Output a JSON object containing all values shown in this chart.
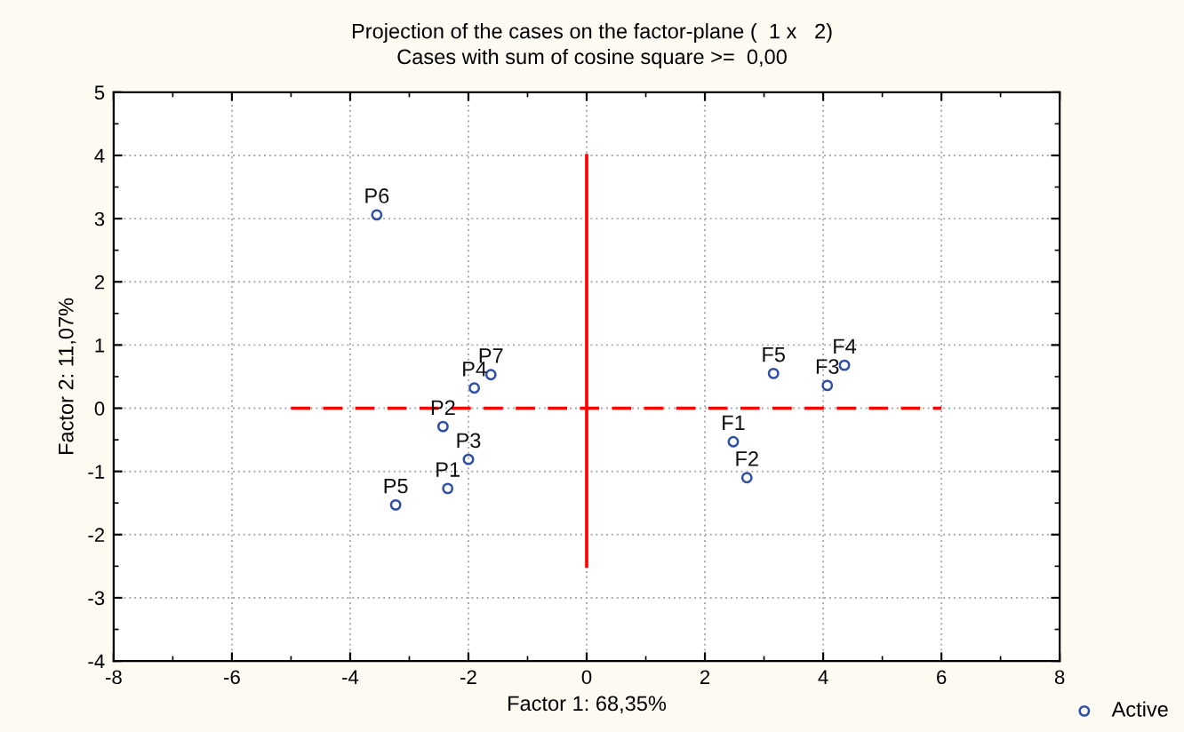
{
  "chart_data": {
    "type": "scatter",
    "title": "Projection of the cases on the factor-plane (  1 x   2)",
    "subtitle": "Cases with sum of cosine square >=  0,00",
    "xlabel": "Factor 1: 68,35%",
    "ylabel": "Factor 2: 11,07%",
    "xlim": [
      -8,
      8
    ],
    "xticks": [
      -8,
      -6,
      -4,
      -2,
      0,
      2,
      4,
      6,
      8
    ],
    "ylim": [
      -4,
      5
    ],
    "yticks": [
      -4,
      -3,
      -2,
      -1,
      0,
      1,
      2,
      3,
      4,
      5
    ],
    "grid": true,
    "legend": "right",
    "series": [
      {
        "name": "Active",
        "color": "#2f4fa8",
        "marker": "circle",
        "x": [
          -2.35,
          -2.43,
          -2.0,
          -1.9,
          -3.23,
          -3.55,
          -1.62,
          2.48,
          2.71,
          4.07,
          4.36,
          3.16
        ],
        "values": [
          -1.27,
          -0.29,
          -0.81,
          0.32,
          -1.53,
          3.06,
          0.53,
          -0.53,
          -1.1,
          0.36,
          0.68,
          0.55
        ],
        "value_labels": [
          "P1",
          "P2",
          "P3",
          "P4",
          "P5",
          "P6",
          "P7",
          "F1",
          "F2",
          "F3",
          "F4",
          "F5"
        ]
      },
      {
        "type": "line",
        "color": "#ff0000",
        "line_style": "dashed",
        "marker": "none",
        "x": [
          -5,
          6
        ],
        "values": [
          0,
          0
        ]
      },
      {
        "type": "line",
        "color": "#ff0000",
        "line_style": "solid",
        "marker": "none",
        "x": [
          0,
          0
        ],
        "values": [
          -2.5,
          4
        ]
      }
    ]
  }
}
